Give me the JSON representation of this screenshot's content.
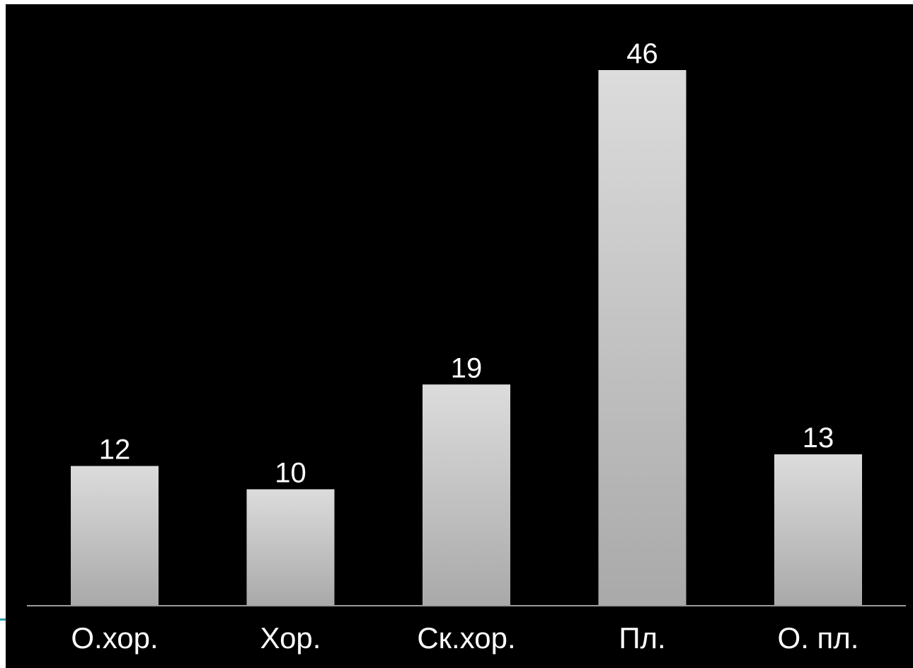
{
  "chart_data": {
    "type": "bar",
    "title": "",
    "xlabel": "",
    "ylabel": "",
    "categories": [
      "О.хор.",
      "Хор.",
      "Ск.хор.",
      "Пл.",
      "О. пл."
    ],
    "values": [
      12,
      10,
      19,
      46,
      13
    ],
    "data_labels": [
      "12",
      "10",
      "19",
      "46",
      "13"
    ],
    "ylim": [
      0,
      46
    ],
    "grid": false,
    "legend": "none",
    "colors": {
      "background": "#000000",
      "bar_top": "#dcdcdc",
      "bar_bottom": "#a9a9a9",
      "text": "#ffffff",
      "axis": "#9a9a9a",
      "accent": "#2aa3ad"
    }
  }
}
